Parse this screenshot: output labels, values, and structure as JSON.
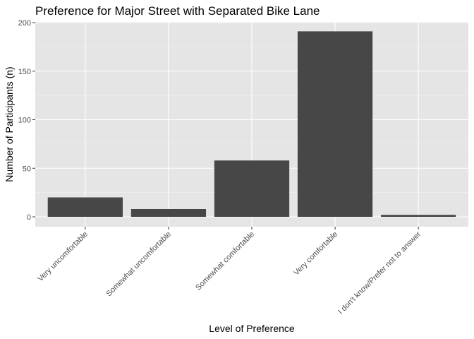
{
  "chart_data": {
    "type": "bar",
    "title": "Preference for Major Street with Separated Bike Lane",
    "xlabel": "Level of Preference",
    "ylabel": "Number of Participants (n)",
    "categories": [
      "Very uncomfortable",
      "Somewhat uncomfortable",
      "Somewhat comfortable",
      "Very comfortable",
      "I don't know/Prefer not to answer"
    ],
    "values": [
      20,
      8,
      58,
      191,
      2
    ],
    "ylim": [
      0,
      200
    ],
    "yticks": [
      0,
      50,
      100,
      150,
      200
    ],
    "grid": true,
    "legend": "none",
    "colors": {
      "bar": "#474747",
      "panel": "#e5e5e5",
      "grid_major": "#ffffff",
      "grid_minor": "#f2f2f2",
      "tick": "#333333"
    }
  }
}
